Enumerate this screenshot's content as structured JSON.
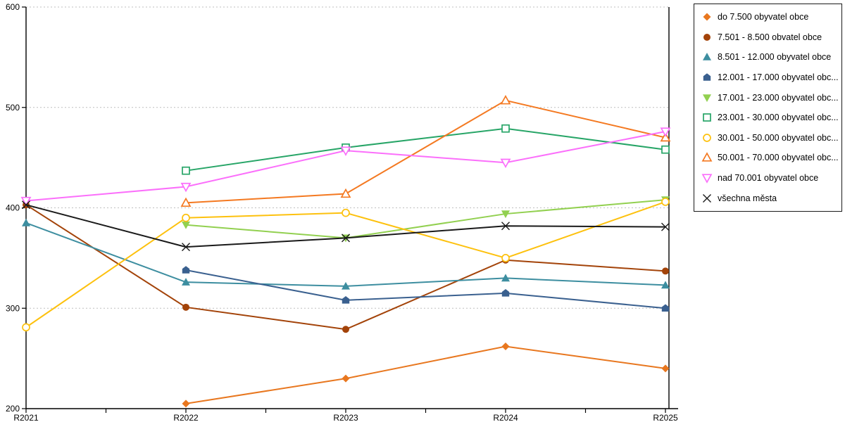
{
  "chart_data": {
    "type": "line",
    "title": "",
    "xlabel": "",
    "ylabel": "",
    "categories": [
      "R2021",
      "R2022",
      "R2023",
      "R2024",
      "R2025"
    ],
    "ylim": [
      200,
      600
    ],
    "yticks": [
      200,
      300,
      400,
      500,
      600
    ],
    "grid": "horizontal-dashed",
    "legend_position": "outside-top-right",
    "colors": {
      "background": "#ffffff",
      "axis": "#000000",
      "grid": "#bfbfbf",
      "legend_border": "#1a1a1a"
    },
    "series": [
      {
        "label": "do 7.500 obyvatel obce",
        "color": "#e8771f",
        "marker": "diamond",
        "fill": "filled",
        "values": [
          null,
          205,
          230,
          262,
          240
        ]
      },
      {
        "label": "7.501 - 8.500 obvatel obce",
        "color": "#a34309",
        "marker": "circle",
        "fill": "filled",
        "values": [
          403,
          301,
          279,
          348,
          337
        ]
      },
      {
        "label": "8.501 - 12.000 obyvatel obce",
        "color": "#3d8ea0",
        "marker": "triangle-up",
        "fill": "filled",
        "values": [
          385,
          326,
          322,
          330,
          323
        ]
      },
      {
        "label": "12.001 - 17.000 obyvatel obc...",
        "color": "#3a608f",
        "marker": "pentagon",
        "fill": "filled",
        "values": [
          null,
          338,
          308,
          315,
          300
        ]
      },
      {
        "label": "17.001 - 23.000 obyvatel obc...",
        "color": "#92d050",
        "marker": "triangle-down",
        "fill": "filled",
        "values": [
          null,
          383,
          370,
          394,
          408
        ]
      },
      {
        "label": "23.001 - 30.000 obyvatel obc...",
        "color": "#27a567",
        "marker": "square",
        "fill": "hollow",
        "values": [
          null,
          437,
          460,
          479,
          458
        ]
      },
      {
        "label": "30.001 - 50.000 obyvatel obc...",
        "color": "#fdc10e",
        "marker": "circle",
        "fill": "hollow",
        "values": [
          281,
          390,
          395,
          350,
          406
        ]
      },
      {
        "label": "50.001 - 70.000 obyvatel obc...",
        "color": "#f47921",
        "marker": "triangle-up",
        "fill": "hollow",
        "values": [
          null,
          405,
          414,
          507,
          470
        ]
      },
      {
        "label": "nad 70.001 obyvatel obce",
        "color": "#fb6ffb",
        "marker": "triangle-down",
        "fill": "hollow",
        "values": [
          407,
          421,
          457,
          445,
          476
        ]
      },
      {
        "label": "všechna města",
        "color": "#1a1a1a",
        "marker": "x-cross",
        "fill": "line",
        "values": [
          403,
          361,
          370,
          382,
          381
        ]
      }
    ]
  }
}
